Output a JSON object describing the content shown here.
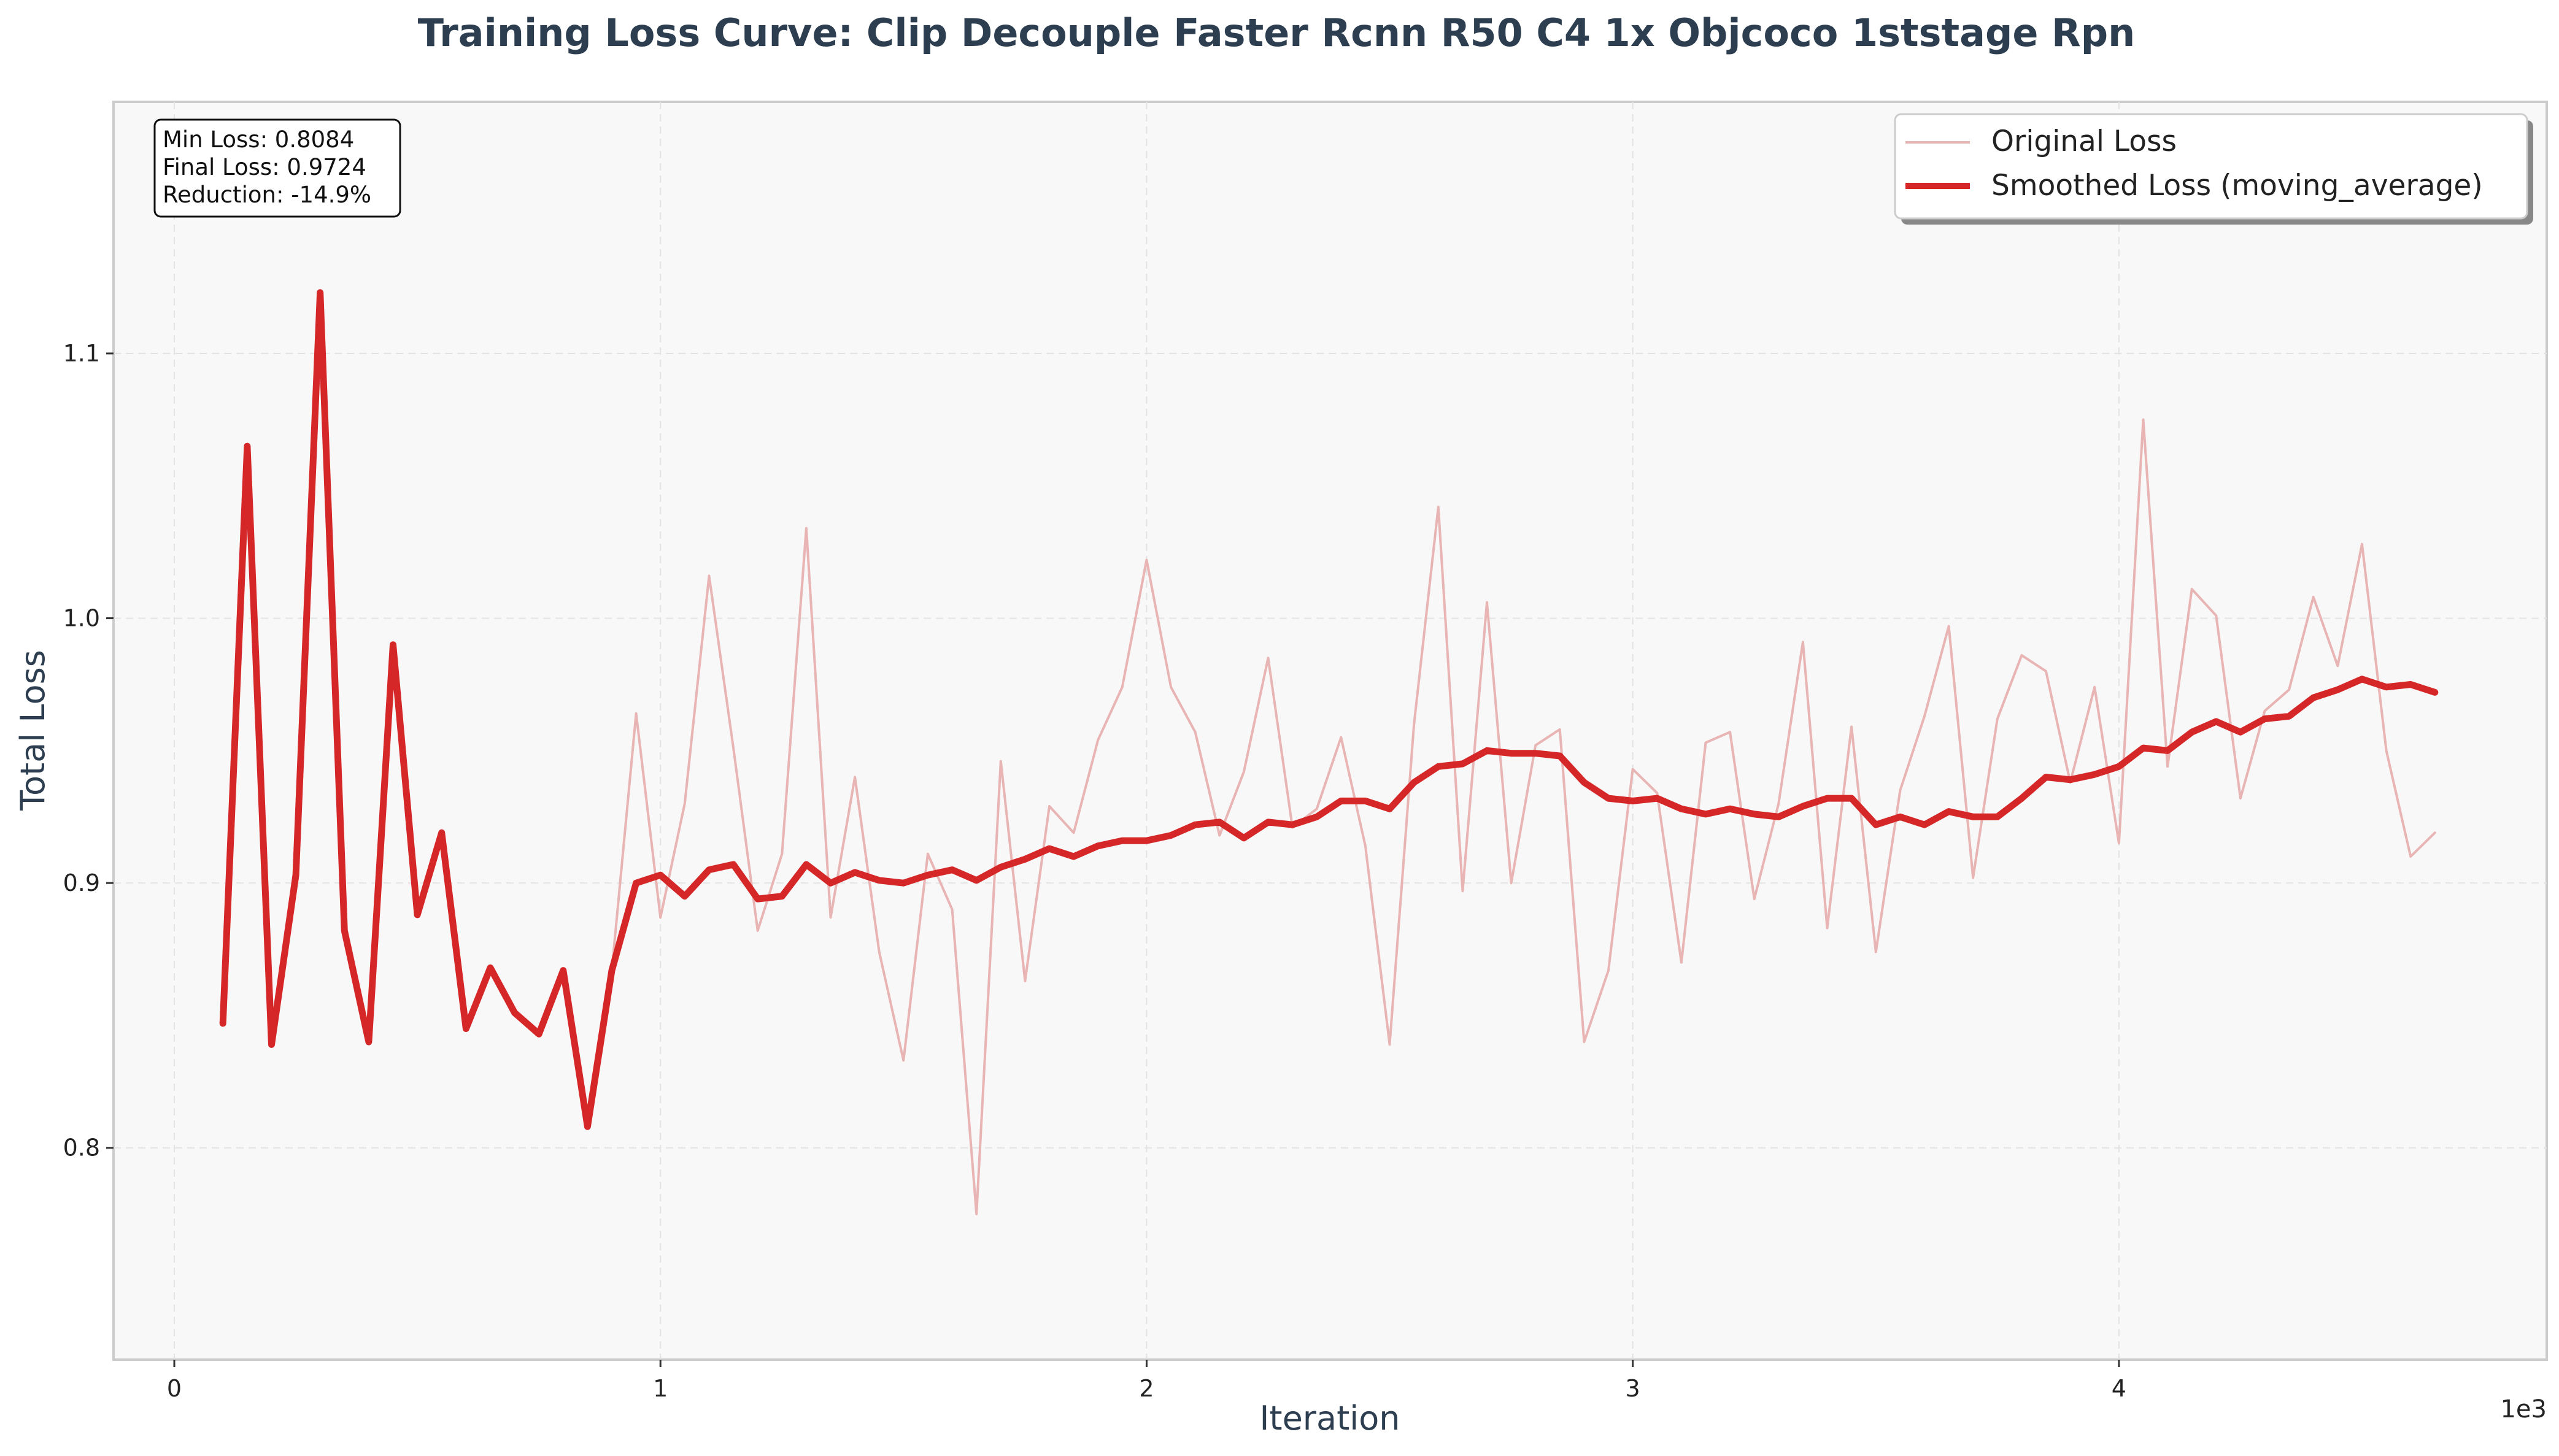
{
  "chart_data": {
    "type": "line",
    "title": "Training Loss Curve: Clip Decouple Faster Rcnn R50 C4 1x Objcoco 1ststage Rpn",
    "xlabel": "Iteration",
    "ylabel": "Total Loss",
    "x_offset_label": "1e3",
    "xlim": [
      -125,
      4880
    ],
    "ylim": [
      0.72,
      1.195
    ],
    "x_ticks": [
      0,
      1000,
      2000,
      3000,
      4000
    ],
    "x_tick_labels": [
      "0",
      "1",
      "2",
      "3",
      "4"
    ],
    "y_ticks": [
      0.8,
      0.9,
      1.0,
      1.1
    ],
    "y_tick_labels": [
      "0.8",
      "0.9",
      "1.0",
      "1.1"
    ],
    "grid": true,
    "legend_position": "top-right",
    "colors": {
      "original": "#e8b4b4",
      "smoothed": "#d62728",
      "title": "#2c3e50",
      "plot_background": "#f8f8f8"
    },
    "stats": [
      "Min Loss: 0.8084",
      "Final Loss: 0.9724",
      "Reduction: -14.9%"
    ],
    "series": [
      {
        "name": "Original Loss",
        "x": [
          100,
          150,
          200,
          250,
          300,
          350,
          400,
          450,
          500,
          550,
          600,
          650,
          700,
          750,
          800,
          850,
          900,
          950,
          1000,
          1050,
          1100,
          1150,
          1200,
          1250,
          1300,
          1350,
          1400,
          1450,
          1500,
          1550,
          1600,
          1650,
          1700,
          1750,
          1800,
          1850,
          1900,
          1950,
          2000,
          2050,
          2100,
          2150,
          2200,
          2250,
          2300,
          2350,
          2400,
          2450,
          2500,
          2550,
          2600,
          2650,
          2700,
          2750,
          2800,
          2850,
          2900,
          2950,
          3000,
          3050,
          3100,
          3150,
          3200,
          3250,
          3300,
          3350,
          3400,
          3450,
          3500,
          3550,
          3600,
          3650,
          3700,
          3750,
          3800,
          3850,
          3900,
          3950,
          4000,
          4050,
          4100,
          4150,
          4200,
          4250,
          4300,
          4350,
          4400,
          4450,
          4500,
          4550,
          4600,
          4650
        ],
        "y": [
          0.847,
          1.065,
          0.839,
          0.903,
          1.123,
          0.882,
          0.84,
          0.99,
          0.888,
          0.919,
          0.845,
          0.868,
          0.851,
          0.843,
          0.867,
          0.808,
          0.867,
          0.964,
          0.887,
          0.93,
          1.016,
          0.951,
          0.882,
          0.911,
          1.034,
          0.887,
          0.94,
          0.874,
          0.833,
          0.911,
          0.89,
          0.775,
          0.946,
          0.863,
          0.929,
          0.919,
          0.954,
          0.974,
          1.022,
          0.974,
          0.957,
          0.918,
          0.942,
          0.985,
          0.921,
          0.928,
          0.955,
          0.914,
          0.839,
          0.96,
          1.042,
          0.897,
          1.006,
          0.9,
          0.952,
          0.958,
          0.84,
          0.867,
          0.943,
          0.934,
          0.87,
          0.953,
          0.957,
          0.894,
          0.93,
          0.991,
          0.883,
          0.959,
          0.874,
          0.935,
          0.963,
          0.997,
          0.902,
          0.962,
          0.986,
          0.98,
          0.938,
          0.974,
          0.915,
          1.075,
          0.944,
          1.011,
          1.001,
          0.932,
          0.965,
          0.973,
          1.008,
          0.982,
          1.028,
          0.95,
          0.91,
          0.919
        ]
      },
      {
        "name": "Smoothed Loss (moving_average)",
        "x": [
          100,
          150,
          200,
          250,
          300,
          350,
          400,
          450,
          500,
          550,
          600,
          650,
          700,
          750,
          800,
          850,
          900,
          950,
          1000,
          1050,
          1100,
          1150,
          1200,
          1250,
          1300,
          1350,
          1400,
          1450,
          1500,
          1550,
          1600,
          1650,
          1700,
          1750,
          1800,
          1850,
          1900,
          1950,
          2000,
          2050,
          2100,
          2150,
          2200,
          2250,
          2300,
          2350,
          2400,
          2450,
          2500,
          2550,
          2600,
          2650,
          2700,
          2750,
          2800,
          2850,
          2900,
          2950,
          3000,
          3050,
          3100,
          3150,
          3200,
          3250,
          3300,
          3350,
          3400,
          3450,
          3500,
          3550,
          3600,
          3650,
          3700,
          3750,
          3800,
          3850,
          3900,
          3950,
          4000,
          4050,
          4100,
          4150,
          4200,
          4250,
          4300,
          4350,
          4400,
          4450,
          4500,
          4550,
          4600,
          4650
        ],
        "y": [
          0.847,
          1.065,
          0.839,
          0.903,
          1.123,
          0.882,
          0.84,
          0.99,
          0.888,
          0.919,
          0.845,
          0.868,
          0.851,
          0.843,
          0.867,
          0.808,
          0.867,
          0.9,
          0.903,
          0.895,
          0.905,
          0.907,
          0.894,
          0.895,
          0.907,
          0.9,
          0.904,
          0.901,
          0.9,
          0.903,
          0.905,
          0.901,
          0.906,
          0.909,
          0.913,
          0.91,
          0.914,
          0.916,
          0.916,
          0.918,
          0.922,
          0.923,
          0.917,
          0.923,
          0.922,
          0.925,
          0.931,
          0.931,
          0.928,
          0.938,
          0.944,
          0.945,
          0.95,
          0.949,
          0.949,
          0.948,
          0.938,
          0.932,
          0.931,
          0.932,
          0.928,
          0.926,
          0.928,
          0.926,
          0.925,
          0.929,
          0.932,
          0.932,
          0.922,
          0.925,
          0.922,
          0.927,
          0.925,
          0.925,
          0.932,
          0.94,
          0.939,
          0.941,
          0.944,
          0.951,
          0.95,
          0.957,
          0.961,
          0.957,
          0.962,
          0.963,
          0.97,
          0.973,
          0.977,
          0.974,
          0.975,
          0.972
        ]
      }
    ]
  }
}
